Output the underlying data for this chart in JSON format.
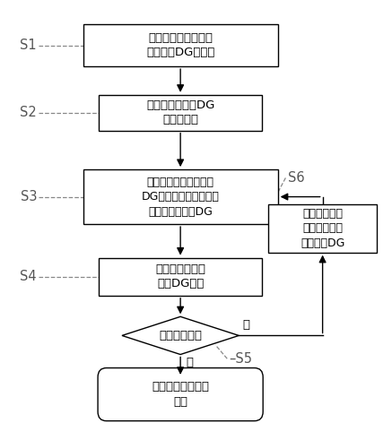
{
  "bg_color": "#ffffff",
  "S1_text": "源网协调控制器获取\n并上传各DG状态量",
  "S2_text": "控制间歇式能源DG\n满出力运行",
  "S3_text": "区域协调控制器计算各\nDG调度功率并下达给当\n前优先级最高的DG",
  "S4_text": "源网协调控制器\n控制DG运行",
  "DM_text": "是否功率超额",
  "EN_text": "达到区域控制目标\n结束",
  "S6_text": "上传功率超额\n信息，选取下\n一优先级DG",
  "yes_text": "是",
  "no_text": "否",
  "label_S1": "S1",
  "label_S2": "S2",
  "label_S3": "S3",
  "label_S4": "S4",
  "label_S5": "S5",
  "label_S6": "S6"
}
